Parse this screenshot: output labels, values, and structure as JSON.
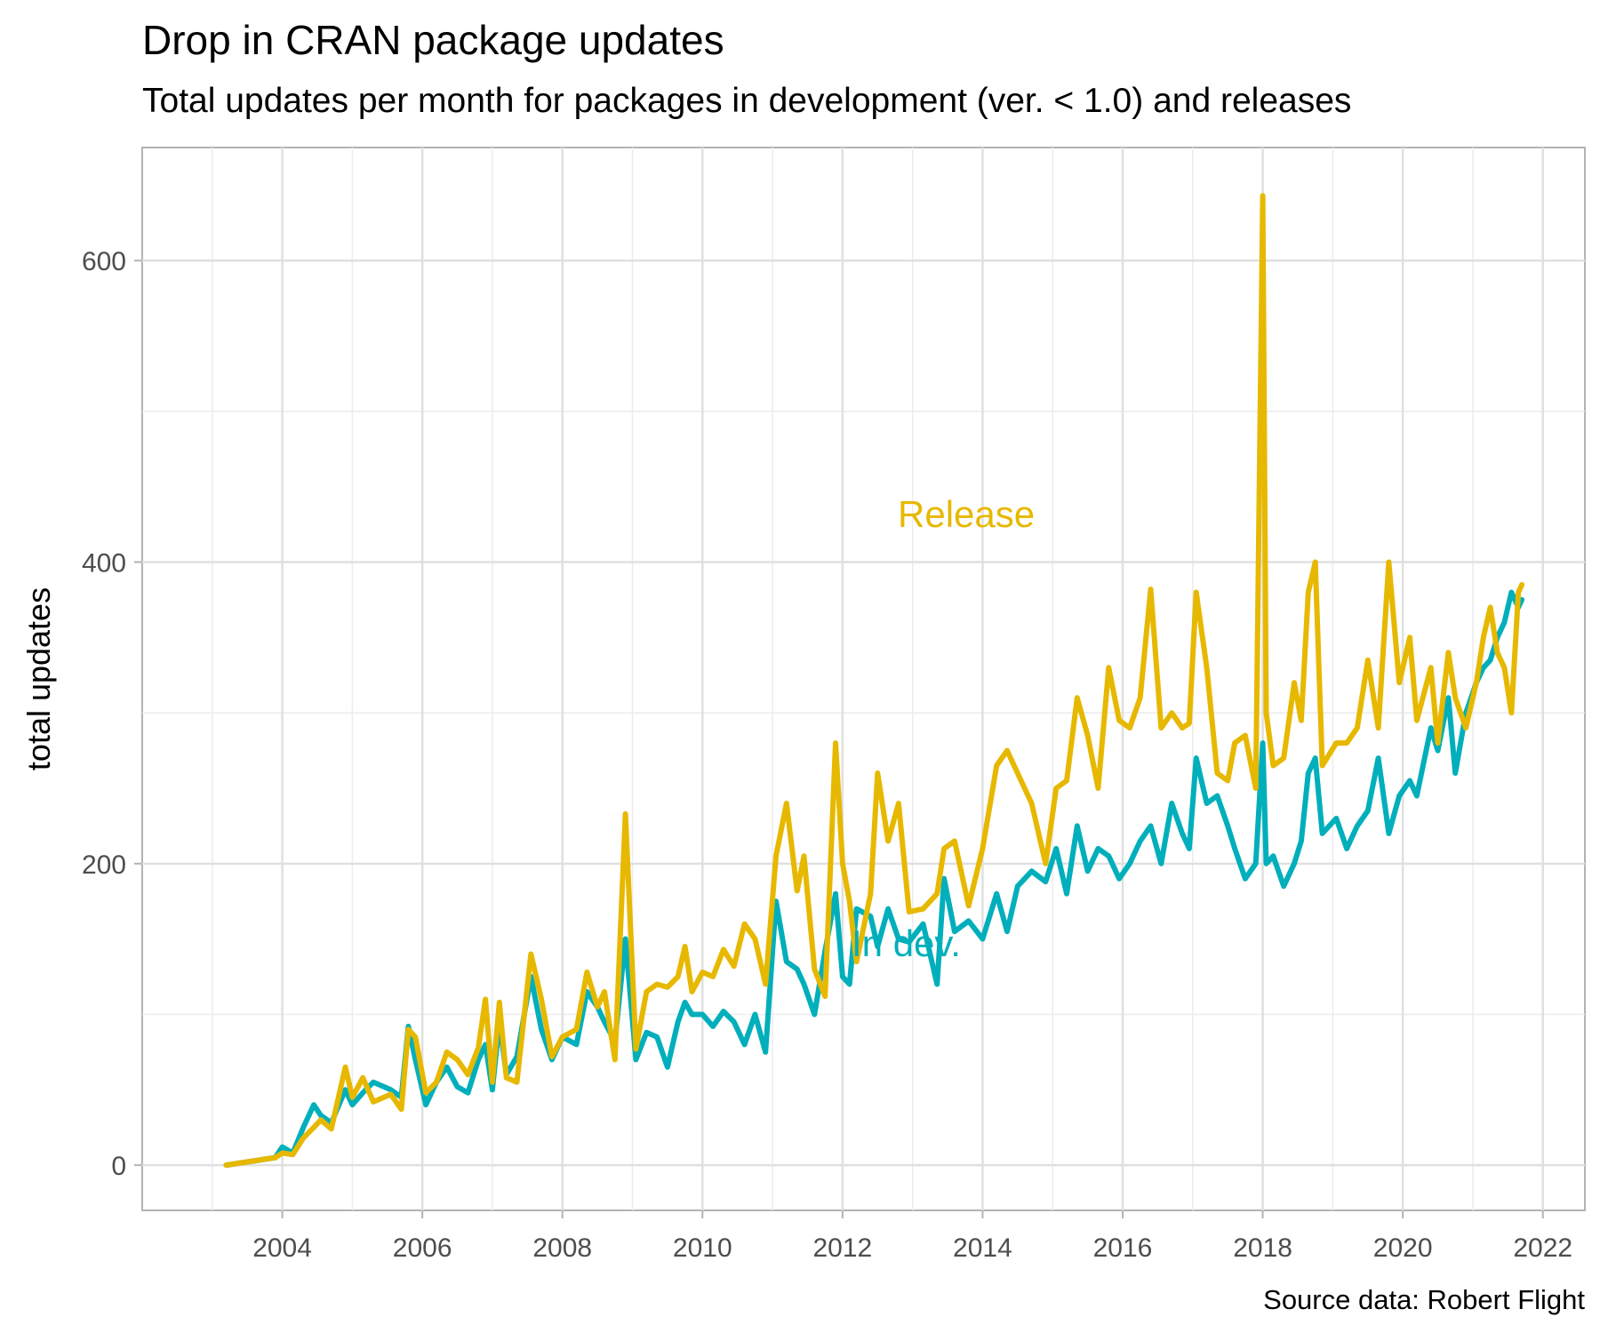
{
  "title": "Drop in CRAN package updates",
  "subtitle": "Total updates per month for packages in development (ver. < 1.0) and releases",
  "caption": "Source data: Robert Flight",
  "chart_data": {
    "type": "line",
    "ylabel": "total updates",
    "xlabel": "",
    "xlim": [
      2002.0,
      2022.6
    ],
    "ylim": [
      -30,
      675
    ],
    "x_ticks": [
      2004,
      2006,
      2008,
      2010,
      2012,
      2014,
      2016,
      2018,
      2020,
      2022
    ],
    "y_ticks": [
      0,
      200,
      400,
      600
    ],
    "grid": true,
    "legend": "none (direct labels)",
    "series": [
      {
        "name": "Release",
        "label": "Release",
        "color": "#E7B800",
        "points": [
          [
            2003.2,
            0
          ],
          [
            2003.9,
            5
          ],
          [
            2004.0,
            8
          ],
          [
            2004.15,
            7
          ],
          [
            2004.3,
            18
          ],
          [
            2004.45,
            25
          ],
          [
            2004.55,
            30
          ],
          [
            2004.7,
            24
          ],
          [
            2004.9,
            65
          ],
          [
            2005.0,
            45
          ],
          [
            2005.15,
            58
          ],
          [
            2005.3,
            42
          ],
          [
            2005.55,
            47
          ],
          [
            2005.7,
            37
          ],
          [
            2005.8,
            90
          ],
          [
            2005.9,
            85
          ],
          [
            2006.05,
            48
          ],
          [
            2006.2,
            55
          ],
          [
            2006.35,
            75
          ],
          [
            2006.5,
            70
          ],
          [
            2006.65,
            60
          ],
          [
            2006.8,
            78
          ],
          [
            2006.9,
            110
          ],
          [
            2007.0,
            55
          ],
          [
            2007.1,
            108
          ],
          [
            2007.2,
            58
          ],
          [
            2007.35,
            55
          ],
          [
            2007.55,
            140
          ],
          [
            2007.7,
            110
          ],
          [
            2007.85,
            72
          ],
          [
            2008.0,
            85
          ],
          [
            2008.2,
            90
          ],
          [
            2008.35,
            128
          ],
          [
            2008.5,
            105
          ],
          [
            2008.6,
            115
          ],
          [
            2008.75,
            70
          ],
          [
            2008.9,
            233
          ],
          [
            2009.05,
            77
          ],
          [
            2009.2,
            115
          ],
          [
            2009.35,
            120
          ],
          [
            2009.5,
            118
          ],
          [
            2009.65,
            125
          ],
          [
            2009.75,
            145
          ],
          [
            2009.85,
            115
          ],
          [
            2010.0,
            128
          ],
          [
            2010.15,
            125
          ],
          [
            2010.3,
            143
          ],
          [
            2010.45,
            132
          ],
          [
            2010.6,
            160
          ],
          [
            2010.75,
            150
          ],
          [
            2010.9,
            120
          ],
          [
            2011.05,
            205
          ],
          [
            2011.2,
            240
          ],
          [
            2011.35,
            182
          ],
          [
            2011.45,
            205
          ],
          [
            2011.6,
            130
          ],
          [
            2011.75,
            112
          ],
          [
            2011.9,
            280
          ],
          [
            2012.0,
            200
          ],
          [
            2012.1,
            175
          ],
          [
            2012.2,
            135
          ],
          [
            2012.4,
            180
          ],
          [
            2012.5,
            260
          ],
          [
            2012.65,
            215
          ],
          [
            2012.8,
            240
          ],
          [
            2012.95,
            168
          ],
          [
            2013.15,
            170
          ],
          [
            2013.35,
            180
          ],
          [
            2013.45,
            210
          ],
          [
            2013.6,
            215
          ],
          [
            2013.8,
            172
          ],
          [
            2014.0,
            210
          ],
          [
            2014.2,
            265
          ],
          [
            2014.35,
            275
          ],
          [
            2014.5,
            260
          ],
          [
            2014.7,
            240
          ],
          [
            2014.9,
            200
          ],
          [
            2015.05,
            250
          ],
          [
            2015.2,
            255
          ],
          [
            2015.35,
            310
          ],
          [
            2015.5,
            285
          ],
          [
            2015.65,
            250
          ],
          [
            2015.8,
            330
          ],
          [
            2015.95,
            295
          ],
          [
            2016.1,
            290
          ],
          [
            2016.25,
            310
          ],
          [
            2016.4,
            382
          ],
          [
            2016.55,
            290
          ],
          [
            2016.7,
            300
          ],
          [
            2016.85,
            290
          ],
          [
            2016.95,
            293
          ],
          [
            2017.05,
            380
          ],
          [
            2017.2,
            330
          ],
          [
            2017.35,
            260
          ],
          [
            2017.5,
            255
          ],
          [
            2017.6,
            280
          ],
          [
            2017.75,
            285
          ],
          [
            2017.9,
            250
          ],
          [
            2018.0,
            643
          ],
          [
            2018.05,
            300
          ],
          [
            2018.15,
            265
          ],
          [
            2018.3,
            270
          ],
          [
            2018.45,
            320
          ],
          [
            2018.55,
            295
          ],
          [
            2018.65,
            380
          ],
          [
            2018.75,
            400
          ],
          [
            2018.85,
            265
          ],
          [
            2019.05,
            280
          ],
          [
            2019.2,
            280
          ],
          [
            2019.35,
            290
          ],
          [
            2019.5,
            335
          ],
          [
            2019.65,
            290
          ],
          [
            2019.8,
            400
          ],
          [
            2019.95,
            320
          ],
          [
            2020.1,
            350
          ],
          [
            2020.2,
            295
          ],
          [
            2020.4,
            330
          ],
          [
            2020.5,
            280
          ],
          [
            2020.65,
            340
          ],
          [
            2020.75,
            310
          ],
          [
            2020.9,
            290
          ],
          [
            2021.05,
            320
          ],
          [
            2021.15,
            350
          ],
          [
            2021.25,
            370
          ],
          [
            2021.35,
            340
          ],
          [
            2021.45,
            330
          ],
          [
            2021.55,
            300
          ],
          [
            2021.65,
            380
          ],
          [
            2021.7,
            385
          ]
        ]
      },
      {
        "name": "In dev.",
        "label": "In dev.",
        "color": "#00AFBB",
        "points": [
          [
            2003.2,
            0
          ],
          [
            2003.9,
            5
          ],
          [
            2004.0,
            12
          ],
          [
            2004.15,
            8
          ],
          [
            2004.3,
            25
          ],
          [
            2004.45,
            40
          ],
          [
            2004.55,
            33
          ],
          [
            2004.7,
            28
          ],
          [
            2004.9,
            50
          ],
          [
            2005.0,
            40
          ],
          [
            2005.15,
            48
          ],
          [
            2005.3,
            55
          ],
          [
            2005.55,
            50
          ],
          [
            2005.7,
            45
          ],
          [
            2005.8,
            92
          ],
          [
            2005.9,
            70
          ],
          [
            2006.05,
            40
          ],
          [
            2006.2,
            55
          ],
          [
            2006.35,
            65
          ],
          [
            2006.5,
            52
          ],
          [
            2006.65,
            48
          ],
          [
            2006.8,
            70
          ],
          [
            2006.9,
            80
          ],
          [
            2007.0,
            50
          ],
          [
            2007.1,
            95
          ],
          [
            2007.2,
            60
          ],
          [
            2007.35,
            72
          ],
          [
            2007.55,
            125
          ],
          [
            2007.7,
            90
          ],
          [
            2007.85,
            70
          ],
          [
            2008.0,
            85
          ],
          [
            2008.2,
            80
          ],
          [
            2008.35,
            115
          ],
          [
            2008.5,
            105
          ],
          [
            2008.6,
            95
          ],
          [
            2008.75,
            82
          ],
          [
            2008.9,
            150
          ],
          [
            2009.05,
            70
          ],
          [
            2009.2,
            88
          ],
          [
            2009.35,
            85
          ],
          [
            2009.5,
            65
          ],
          [
            2009.65,
            95
          ],
          [
            2009.75,
            108
          ],
          [
            2009.85,
            100
          ],
          [
            2010.0,
            100
          ],
          [
            2010.15,
            92
          ],
          [
            2010.3,
            102
          ],
          [
            2010.45,
            95
          ],
          [
            2010.6,
            80
          ],
          [
            2010.75,
            100
          ],
          [
            2010.9,
            75
          ],
          [
            2011.05,
            175
          ],
          [
            2011.2,
            135
          ],
          [
            2011.35,
            130
          ],
          [
            2011.45,
            120
          ],
          [
            2011.6,
            100
          ],
          [
            2011.75,
            142
          ],
          [
            2011.9,
            180
          ],
          [
            2012.0,
            125
          ],
          [
            2012.1,
            120
          ],
          [
            2012.2,
            170
          ],
          [
            2012.4,
            165
          ],
          [
            2012.5,
            145
          ],
          [
            2012.65,
            170
          ],
          [
            2012.8,
            150
          ],
          [
            2012.95,
            148
          ],
          [
            2013.15,
            160
          ],
          [
            2013.35,
            120
          ],
          [
            2013.45,
            190
          ],
          [
            2013.6,
            155
          ],
          [
            2013.8,
            162
          ],
          [
            2014.0,
            150
          ],
          [
            2014.2,
            180
          ],
          [
            2014.35,
            155
          ],
          [
            2014.5,
            185
          ],
          [
            2014.7,
            195
          ],
          [
            2014.9,
            188
          ],
          [
            2015.05,
            210
          ],
          [
            2015.2,
            180
          ],
          [
            2015.35,
            225
          ],
          [
            2015.5,
            195
          ],
          [
            2015.65,
            210
          ],
          [
            2015.8,
            205
          ],
          [
            2015.95,
            190
          ],
          [
            2016.1,
            200
          ],
          [
            2016.25,
            215
          ],
          [
            2016.4,
            225
          ],
          [
            2016.55,
            200
          ],
          [
            2016.7,
            240
          ],
          [
            2016.85,
            220
          ],
          [
            2016.95,
            210
          ],
          [
            2017.05,
            270
          ],
          [
            2017.2,
            240
          ],
          [
            2017.35,
            245
          ],
          [
            2017.5,
            225
          ],
          [
            2017.6,
            210
          ],
          [
            2017.75,
            190
          ],
          [
            2017.9,
            200
          ],
          [
            2018.0,
            280
          ],
          [
            2018.05,
            200
          ],
          [
            2018.15,
            205
          ],
          [
            2018.3,
            185
          ],
          [
            2018.45,
            200
          ],
          [
            2018.55,
            215
          ],
          [
            2018.65,
            260
          ],
          [
            2018.75,
            270
          ],
          [
            2018.85,
            220
          ],
          [
            2019.05,
            230
          ],
          [
            2019.2,
            210
          ],
          [
            2019.35,
            225
          ],
          [
            2019.5,
            235
          ],
          [
            2019.65,
            270
          ],
          [
            2019.8,
            220
          ],
          [
            2019.95,
            245
          ],
          [
            2020.1,
            255
          ],
          [
            2020.2,
            245
          ],
          [
            2020.4,
            290
          ],
          [
            2020.5,
            275
          ],
          [
            2020.65,
            310
          ],
          [
            2020.75,
            260
          ],
          [
            2020.9,
            300
          ],
          [
            2021.05,
            320
          ],
          [
            2021.15,
            330
          ],
          [
            2021.25,
            335
          ],
          [
            2021.35,
            350
          ],
          [
            2021.45,
            360
          ],
          [
            2021.55,
            380
          ],
          [
            2021.65,
            370
          ],
          [
            2021.7,
            375
          ]
        ]
      }
    ]
  }
}
